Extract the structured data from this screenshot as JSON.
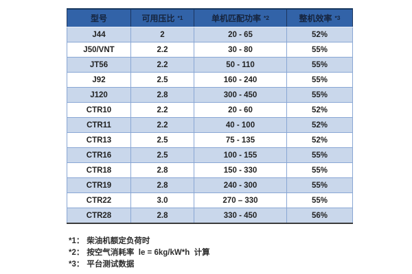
{
  "colors": {
    "header_bg": "#3263a8",
    "header_text": "#16243d",
    "band_row": "#c9d7eb",
    "grid_border": "#88a6d4",
    "bottom_border": "#3a3a3a"
  },
  "table": {
    "columns": [
      {
        "label": "型号",
        "note": ""
      },
      {
        "label": "可用压比",
        "note": "*1"
      },
      {
        "label": "单机匹配功率",
        "note": "*2"
      },
      {
        "label": "整机效率",
        "note": "*3"
      }
    ],
    "rows": [
      {
        "model": "J44",
        "pressure_ratio": "2",
        "power_range": "20 - 65",
        "efficiency": "52%"
      },
      {
        "model": "J50/VNT",
        "pressure_ratio": "2.2",
        "power_range": "30 - 80",
        "efficiency": "55%"
      },
      {
        "model": "JT56",
        "pressure_ratio": "2.2",
        "power_range": "50 - 110",
        "efficiency": "55%"
      },
      {
        "model": "J92",
        "pressure_ratio": "2.5",
        "power_range": "160 - 240",
        "efficiency": "55%"
      },
      {
        "model": "J120",
        "pressure_ratio": "2.8",
        "power_range": "300 - 450",
        "efficiency": "55%"
      },
      {
        "model": "CTR10",
        "pressure_ratio": "2.2",
        "power_range": "20 - 60",
        "efficiency": "52%"
      },
      {
        "model": "CTR11",
        "pressure_ratio": "2.2",
        "power_range": "40 - 100",
        "efficiency": "52%"
      },
      {
        "model": "CTR13",
        "pressure_ratio": "2.5",
        "power_range": "75 - 135",
        "efficiency": "52%"
      },
      {
        "model": "CTR16",
        "pressure_ratio": "2.5",
        "power_range": "100 - 155",
        "efficiency": "55%"
      },
      {
        "model": "CTR18",
        "pressure_ratio": "2.8",
        "power_range": "150 - 330",
        "efficiency": "55%"
      },
      {
        "model": "CTR19",
        "pressure_ratio": "2.8",
        "power_range": "240 - 300",
        "efficiency": "55%"
      },
      {
        "model": "CTR22",
        "pressure_ratio": "3.0",
        "power_range": "270 – 330",
        "efficiency": "55%"
      },
      {
        "model": "CTR28",
        "pressure_ratio": "2.8",
        "power_range": "330 - 450",
        "efficiency": "56%"
      }
    ]
  },
  "footnotes": [
    {
      "marker": "*1：",
      "text": "柴油机额定负荷时"
    },
    {
      "marker": "*2：",
      "text": "按空气消耗率  le = 6kg/kW*h  计算"
    },
    {
      "marker": "*3：",
      "text": "平台测试数据"
    }
  ]
}
